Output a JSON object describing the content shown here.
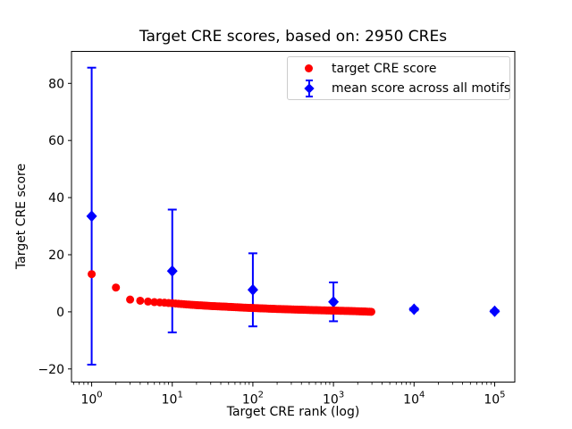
{
  "title": "Target CRE scores, based on: 2950 CREs",
  "xlabel": "Target CRE rank (log)",
  "ylabel": "Target CRE score",
  "colors": {
    "red": "#ff0000",
    "blue": "#0000ff",
    "axis": "#000000",
    "legend_border": "#cccccc",
    "background": "#ffffff"
  },
  "legend": {
    "position": "upper right",
    "items": [
      {
        "label": "target CRE score",
        "marker": "circle",
        "color": "#ff0000"
      },
      {
        "label": "mean score across all motifs",
        "marker": "diamond-with-errorbar",
        "color": "#0000ff"
      }
    ]
  },
  "chart_data": {
    "type": "scatter",
    "title": "Target CRE scores, based on: 2950 CREs",
    "xlabel": "Target CRE rank (log)",
    "ylabel": "Target CRE score",
    "x_scale": "log",
    "xlim": [
      0.562,
      177828
    ],
    "ylim": [
      -24.6,
      91.2
    ],
    "x_tick_exponents": [
      0,
      1,
      2,
      3,
      4,
      5
    ],
    "x_ticks": [
      1,
      10,
      100,
      1000,
      10000,
      100000
    ],
    "y_ticks": [
      -20,
      0,
      20,
      40,
      60,
      80
    ],
    "grid": false,
    "series": [
      {
        "name": "mean score across all motifs",
        "type": "errorbar",
        "marker": "diamond",
        "color": "#0000ff",
        "points": [
          {
            "x": 1,
            "y": 33.5,
            "err": 52.0
          },
          {
            "x": 10,
            "y": 14.3,
            "err": 21.5
          },
          {
            "x": 100,
            "y": 7.7,
            "err": 12.8
          },
          {
            "x": 1000,
            "y": 3.5,
            "err": 6.8
          },
          {
            "x": 10000,
            "y": 0.9,
            "err": 0.4
          },
          {
            "x": 100000,
            "y": 0.2,
            "err": 0.3
          }
        ]
      },
      {
        "name": "target CRE score",
        "type": "scatter",
        "marker": "circle",
        "color": "#ff0000",
        "n_points": 2950,
        "x_is_rank": true,
        "rank_range": [
          1,
          2950
        ],
        "anchors": [
          [
            1,
            13.2
          ],
          [
            2,
            8.5
          ],
          [
            3,
            4.3
          ],
          [
            4,
            3.9
          ],
          [
            5,
            3.6
          ],
          [
            6,
            3.4
          ],
          [
            8,
            3.2
          ],
          [
            10,
            3.0
          ],
          [
            15,
            2.6
          ],
          [
            20,
            2.35
          ],
          [
            30,
            2.05
          ],
          [
            50,
            1.75
          ],
          [
            80,
            1.45
          ],
          [
            120,
            1.25
          ],
          [
            200,
            1.0
          ],
          [
            300,
            0.85
          ],
          [
            500,
            0.65
          ],
          [
            800,
            0.5
          ],
          [
            1200,
            0.38
          ],
          [
            1800,
            0.25
          ],
          [
            2400,
            0.12
          ],
          [
            2950,
            0.02
          ]
        ]
      }
    ]
  }
}
